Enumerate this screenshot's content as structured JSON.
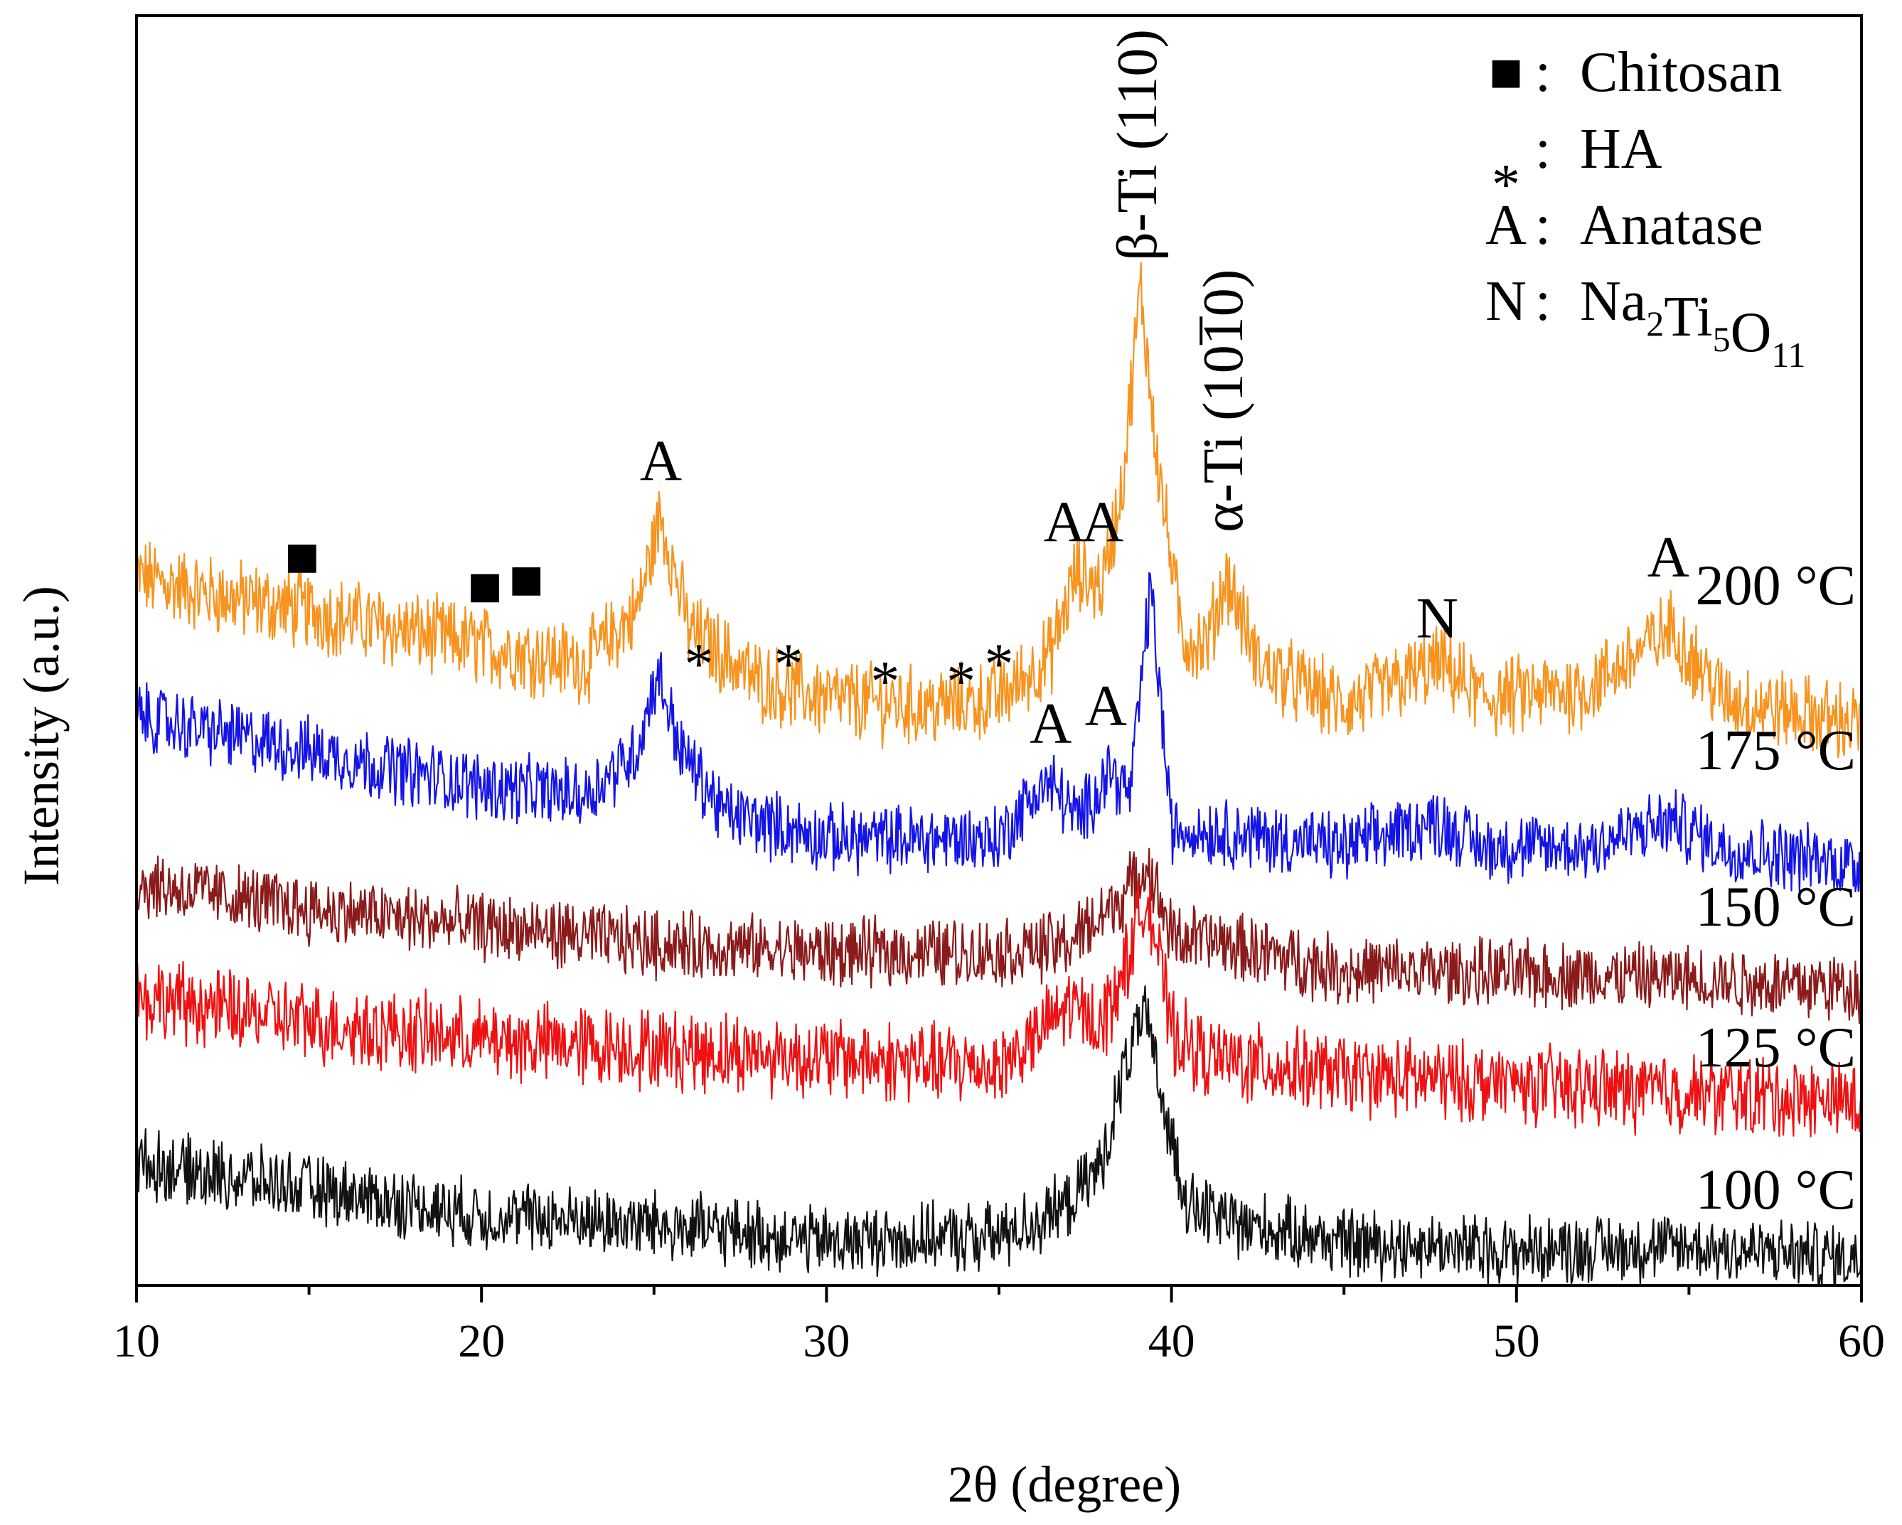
{
  "chart_data": {
    "type": "line",
    "title": "",
    "xlabel": "2θ (degree)",
    "ylabel": "Intensity (a.u.)",
    "xlim": [
      10,
      60
    ],
    "xticks": [
      "10",
      "20",
      "30",
      "40",
      "50",
      "60"
    ],
    "yticks": "none",
    "grid": false,
    "legend": {
      "placement": "top-right",
      "entries": [
        {
          "marker": "■",
          "sep": ":",
          "text": "Chitosan"
        },
        {
          "marker": "*",
          "sep": ":",
          "text": "HA"
        },
        {
          "marker": "A",
          "sep": ":",
          "text": "Anatase"
        },
        {
          "marker": "N",
          "sep": ":",
          "text": "Na",
          "formula": [
            [
              "Na",
              "2"
            ],
            [
              "Ti",
              "5"
            ],
            [
              "O",
              "11"
            ]
          ]
        }
      ]
    },
    "series": [
      {
        "name": "200 °C",
        "color": "#f7931e",
        "baseline": 3.05,
        "noise": 0.2,
        "x": [
          10,
          12,
          15,
          20,
          23,
          24.5,
          25.2,
          26,
          28,
          30,
          33,
          35,
          36.5,
          37.2,
          38,
          38.6,
          39.1,
          39.6,
          40.3,
          41,
          41.6,
          42.5,
          45,
          47.8,
          49,
          52,
          54.5,
          56,
          60
        ],
        "values": [
          3.95,
          3.85,
          3.75,
          3.55,
          3.45,
          3.75,
          4.3,
          3.65,
          3.35,
          3.25,
          3.2,
          3.25,
          3.5,
          3.95,
          3.9,
          4.5,
          5.6,
          4.6,
          3.6,
          3.55,
          3.95,
          3.45,
          3.2,
          3.45,
          3.25,
          3.3,
          3.65,
          3.25,
          3.1
        ]
      },
      {
        "name": "175 °C",
        "color": "#1414e6",
        "baseline": 2.3,
        "noise": 0.17,
        "x": [
          10,
          15,
          20,
          23,
          24.5,
          25.1,
          25.8,
          27,
          30,
          35,
          36.2,
          36.6,
          37.3,
          38.2,
          38.8,
          39.4,
          40,
          41,
          45,
          47.7,
          49,
          52,
          54.5,
          56,
          60
        ],
        "values": [
          3.15,
          2.95,
          2.75,
          2.7,
          2.95,
          3.4,
          2.95,
          2.6,
          2.45,
          2.45,
          2.75,
          2.75,
          2.55,
          2.85,
          2.7,
          3.9,
          2.5,
          2.5,
          2.4,
          2.55,
          2.4,
          2.4,
          2.55,
          2.4,
          2.3
        ]
      },
      {
        "name": "150 °C",
        "color": "#8b1a1a",
        "baseline": 1.6,
        "noise": 0.17,
        "x": [
          10,
          15,
          20,
          25,
          30,
          35,
          37,
          38.5,
          39.3,
          40,
          41.5,
          45,
          50,
          55,
          60
        ],
        "values": [
          2.2,
          2.05,
          1.95,
          1.85,
          1.8,
          1.8,
          1.85,
          2.1,
          2.3,
          1.9,
          1.85,
          1.7,
          1.68,
          1.65,
          1.6
        ]
      },
      {
        "name": "125 °C",
        "color": "#ee1111",
        "baseline": 0.85,
        "noise": 0.2,
        "x": [
          10,
          15,
          20,
          25,
          30,
          35,
          36,
          37,
          38,
          38.7,
          39.3,
          40,
          41,
          45,
          50,
          55,
          60
        ],
        "values": [
          1.55,
          1.4,
          1.3,
          1.25,
          1.2,
          1.15,
          1.3,
          1.5,
          1.4,
          1.75,
          2.15,
          1.35,
          1.2,
          1.1,
          1.05,
          1.0,
          0.95
        ]
      },
      {
        "name": "100 °C",
        "color": "#111111",
        "baseline": 0.0,
        "noise": 0.17,
        "x": [
          10,
          15,
          20,
          25,
          30,
          35,
          37,
          38,
          38.7,
          39.2,
          39.8,
          40.5,
          42,
          45,
          50,
          55,
          60
        ],
        "values": [
          0.6,
          0.45,
          0.3,
          0.25,
          0.15,
          0.18,
          0.35,
          0.6,
          1.2,
          1.45,
          0.9,
          0.35,
          0.25,
          0.15,
          0.1,
          0.12,
          0.05
        ]
      }
    ],
    "annotations": [
      {
        "text": "■",
        "x": 14.8,
        "y": 3.95
      },
      {
        "text": "■",
        "x": 20.1,
        "y": 3.78
      },
      {
        "text": "■",
        "x": 21.3,
        "y": 3.82
      },
      {
        "text": "A",
        "x": 25.2,
        "y": 4.5
      },
      {
        "text": "*",
        "x": 26.3,
        "y": 3.55
      },
      {
        "text": "*",
        "x": 28.9,
        "y": 3.55
      },
      {
        "text": "*",
        "x": 31.7,
        "y": 3.45
      },
      {
        "text": "*",
        "x": 33.9,
        "y": 3.45
      },
      {
        "text": "*",
        "x": 35.0,
        "y": 3.55
      },
      {
        "text": "A",
        "x": 36.9,
        "y": 4.15
      },
      {
        "text": "A",
        "x": 38.0,
        "y": 4.15
      },
      {
        "text": "A",
        "x": 54.4,
        "y": 3.95
      },
      {
        "text": "N",
        "x": 47.7,
        "y": 3.6
      },
      {
        "text": "A",
        "x": 36.5,
        "y": 3.0
      },
      {
        "text": "A",
        "x": 38.1,
        "y": 3.1
      }
    ],
    "vertical_labels": [
      {
        "text": "β-Ti (110)",
        "x": 39.1,
        "y": 5.75
      },
      {
        "text": "α-Ti (1010)",
        "x": 41.6,
        "y": 4.2
      }
    ],
    "ylim": [
      -0.1,
      7.15
    ]
  }
}
